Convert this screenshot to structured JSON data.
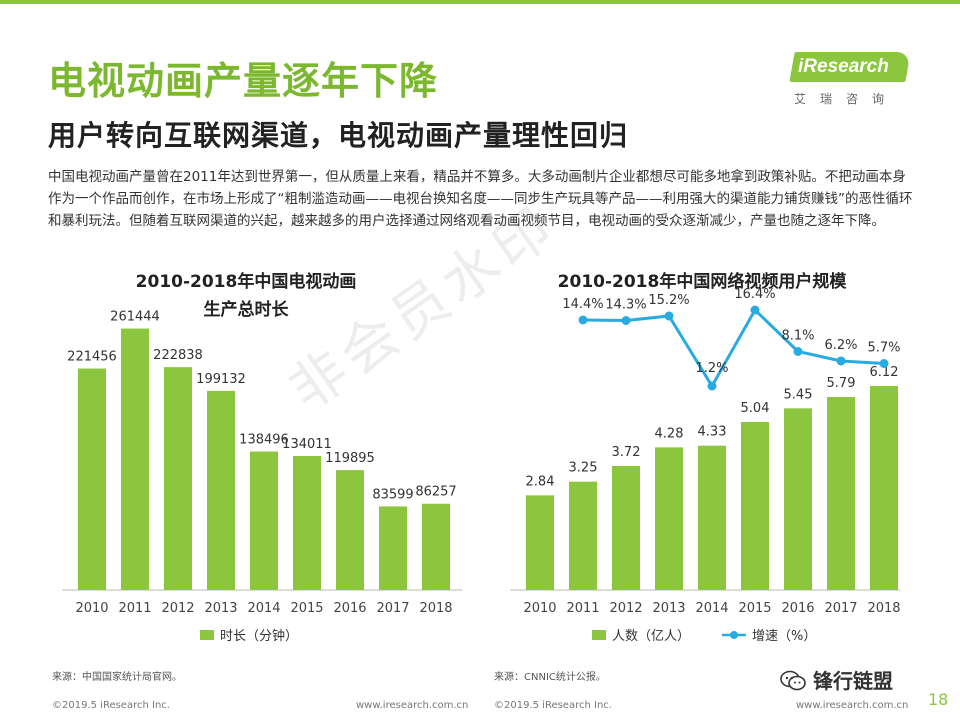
{
  "title": "电视动画产量逐年下降",
  "subtitle": "用户转向互联网渠道，电视动画产量理性回归",
  "logo": {
    "name": "iResearch",
    "cn": "艾瑞咨询"
  },
  "description": "中国电视动画产量曾在2011年达到世界第一，但从质量上来看，精品并不算多。大多动画制片企业都想尽可能多地拿到政策补贴。不把动画本身作为一个作品而创作，在市场上形成了“粗制滥造动画——电视台换知名度——同步生产玩具等产品——利用强大的渠道能力铺货赚钱”的恶性循环和暴利玩法。但随着互联网渠道的兴起，越来越多的用户选择通过网络观看动画视频节目，电视动画的受众逐渐减少，产量也随之逐年下降。",
  "watermark": "非会员水印",
  "colors": {
    "accent": "#8cc63f",
    "line": "#29abe2"
  },
  "chart_data": [
    {
      "type": "bar",
      "title_lines": [
        "2010-2018年中国电视动画",
        "生产总时长"
      ],
      "categories": [
        "2010",
        "2011",
        "2012",
        "2013",
        "2014",
        "2015",
        "2016",
        "2017",
        "2018"
      ],
      "series": [
        {
          "name": "时长（分钟）",
          "values": [
            221456,
            261444,
            222838,
            199132,
            138496,
            134011,
            119895,
            83599,
            86257
          ]
        }
      ],
      "ylim": [
        0,
        300000
      ],
      "legend_position": "bottom",
      "grid": false
    },
    {
      "type": "bar+line",
      "title_lines": [
        "2010-2018年中国网络视频用户规模"
      ],
      "categories": [
        "2010",
        "2011",
        "2012",
        "2013",
        "2014",
        "2015",
        "2016",
        "2017",
        "2018"
      ],
      "series": [
        {
          "name": "人数（亿人）",
          "type": "bar",
          "values": [
            2.84,
            3.25,
            3.72,
            4.28,
            4.33,
            5.04,
            5.45,
            5.79,
            6.12
          ],
          "labels": [
            "2.84",
            "3.25",
            "3.72",
            "4.28",
            "4.33",
            "5.04",
            "5.45",
            "5.79",
            "6.12"
          ]
        },
        {
          "name": "增速（%）",
          "type": "line",
          "values": [
            14.4,
            14.3,
            15.2,
            1.2,
            16.4,
            8.1,
            6.2,
            5.7
          ],
          "x": [
            "2011",
            "2012",
            "2013",
            "2014",
            "2015",
            "2016",
            "2017",
            "2018"
          ],
          "labels": [
            "14.4%",
            "14.3%",
            "15.2%",
            "1.2%",
            "16.4%",
            "8.1%",
            "6.2%",
            "5.7%"
          ]
        }
      ],
      "ylim_bar": [
        0,
        9
      ],
      "legend_position": "bottom",
      "grid": false
    }
  ],
  "sources": [
    "来源：中国国家统计局官网。",
    "来源：CNNIC统计公报。"
  ],
  "footer": {
    "left_copyright": "©2019.5 iResearch Inc.",
    "left_url": "www.iresearch.com.cn",
    "right_copyright": "©2019.5 iResearch Inc.",
    "right_url": "www.iresearch.com.cn"
  },
  "wechat_account": "锋行链盟",
  "page_number": "18"
}
